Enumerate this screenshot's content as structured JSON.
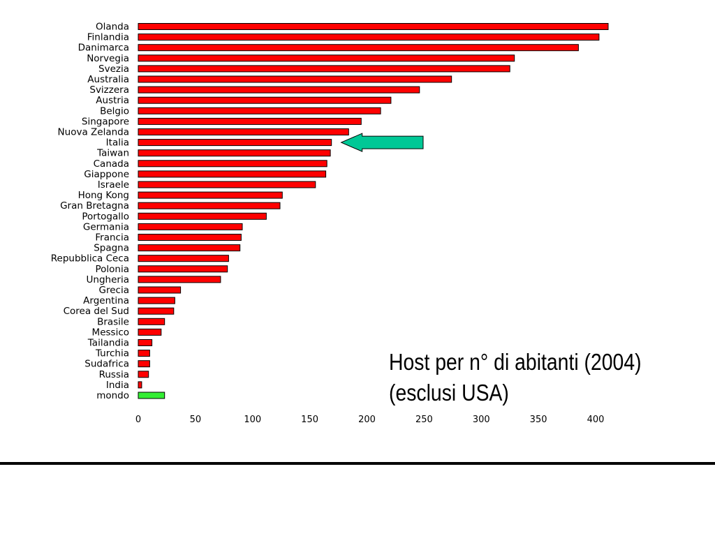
{
  "chart_data": {
    "type": "bar",
    "orientation": "horizontal",
    "categories": [
      "Olanda",
      "Finlandia",
      "Danimarca",
      "Norvegia",
      "Svezia",
      "Australia",
      "Svizzera",
      "Austria",
      "Belgio",
      "Singapore",
      "Nuova Zelanda",
      "Italia",
      "Taiwan",
      "Canada",
      "Giappone",
      "Israele",
      "Hong Kong",
      "Gran Bretagna",
      "Portogallo",
      "Germania",
      "Francia",
      "Spagna",
      "Repubblica Ceca",
      "Polonia",
      "Ungheria",
      "Grecia",
      "Argentina",
      "Corea del Sud",
      "Brasile",
      "Messico",
      "Tailandia",
      "Turchia",
      "Sudafrica",
      "Russia",
      "India",
      "mondo"
    ],
    "values": [
      411,
      403,
      385,
      329,
      325,
      274,
      246,
      221,
      212,
      195,
      184,
      169,
      168,
      165,
      164,
      155,
      126,
      124,
      112,
      91,
      90,
      89,
      79,
      78,
      72,
      37,
      32,
      31,
      23,
      20,
      12,
      10,
      10,
      9,
      3,
      23
    ],
    "colors": {
      "default": "#ff0000",
      "mondo": "#33ee33"
    },
    "xlim": [
      0,
      420
    ],
    "xticks": [
      "0",
      "50",
      "100",
      "150",
      "200",
      "250",
      "300",
      "350",
      "400"
    ],
    "xticks_values": [
      0,
      50,
      100,
      150,
      200,
      250,
      300,
      350,
      400
    ],
    "highlight": {
      "category": "Italia",
      "marker": "arrow",
      "color": "#00c896"
    },
    "grid": false
  },
  "caption": {
    "line1": "Host per n° di abitanti (2004)",
    "line2": "(esclusi USA)"
  }
}
